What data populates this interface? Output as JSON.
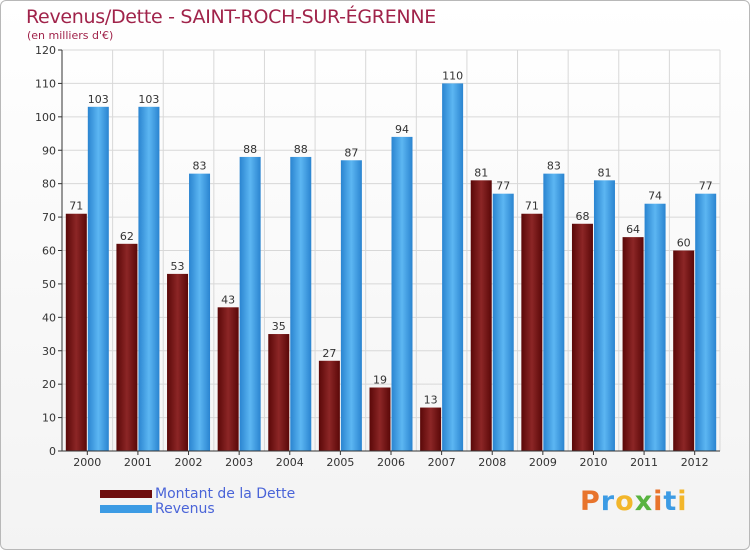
{
  "title": "Revenus/Dette - SAINT-ROCH-SUR-ÉGRENNE",
  "subtitle": "(en milliers d'€)",
  "logo_text": "Proxiti",
  "colors": {
    "title": "#a0234a",
    "dette": "#7a1a1a",
    "revenus": "#3c9be4",
    "legend_text": "#4a64d8",
    "grid": "#d8d8d8",
    "axis": "#333333",
    "data_label": "#333333"
  },
  "legend": [
    {
      "label": "Montant de la Dette",
      "color": "#6e0d0d"
    },
    {
      "label": "Revenus",
      "color": "#3c9be4"
    }
  ],
  "chart_data": {
    "type": "bar",
    "title": "Revenus/Dette - SAINT-ROCH-SUR-ÉGRENNE",
    "subtitle": "(en milliers d'€)",
    "xlabel": "",
    "ylabel": "",
    "categories": [
      "2000",
      "2001",
      "2002",
      "2003",
      "2004",
      "2005",
      "2006",
      "2007",
      "2008",
      "2009",
      "2010",
      "2011",
      "2012"
    ],
    "series": [
      {
        "name": "Montant de la Dette",
        "values": [
          71,
          62,
          53,
          43,
          35,
          27,
          19,
          13,
          81,
          71,
          68,
          64,
          60
        ]
      },
      {
        "name": "Revenus",
        "values": [
          103,
          103,
          83,
          88,
          88,
          87,
          94,
          110,
          77,
          83,
          81,
          74,
          77
        ]
      }
    ],
    "ylim": [
      0,
      120
    ],
    "yticks": [
      0,
      10,
      20,
      30,
      40,
      50,
      60,
      70,
      80,
      90,
      100,
      110,
      120
    ],
    "grid": true,
    "legend_position": "bottom-left"
  }
}
